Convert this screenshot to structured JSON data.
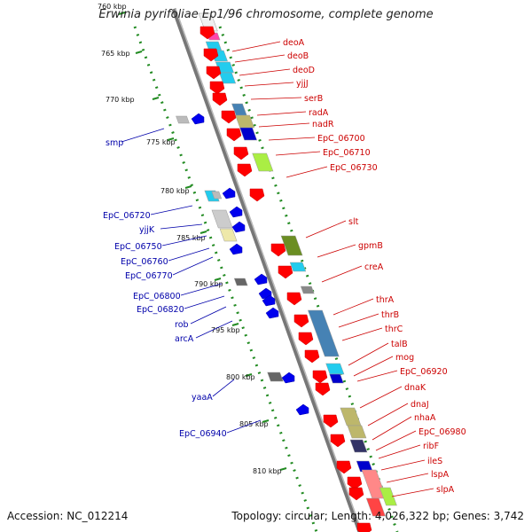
{
  "title": "Erwinia pyrifoliae Ep1/96 chromosome, complete genome",
  "footer": {
    "accession": "Accession: NC_012214",
    "stats": "Topology: circular; Length: 4,026,322 bp; Genes: 3,742"
  },
  "colors": {
    "forward_label": "#cc0000",
    "reverse_label": "#0000aa",
    "ruler": "#228b22",
    "backbone": "#888888"
  },
  "ticks": [
    "760 kbp",
    "765 kbp",
    "770 kbp",
    "775 kbp",
    "780 kbp",
    "785 kbp",
    "790 kbp",
    "795 kbp",
    "800 kbp",
    "805 kbp",
    "810 kbp"
  ],
  "forward_genes": [
    "deoA",
    "deoB",
    "deoD",
    "yjjJ",
    "serB",
    "radA",
    "nadR",
    "EpC_06700",
    "EpC_06710",
    "EpC_06730",
    "slt",
    "gpmB",
    "creA",
    "thrA",
    "thrB",
    "thrC",
    "talB",
    "mog",
    "EpC_06920",
    "dnaK",
    "dnaJ",
    "nhaA",
    "EpC_06980",
    "ribF",
    "ileS",
    "lspA",
    "slpA"
  ],
  "reverse_genes": [
    "smp",
    "EpC_06720",
    "yjjK",
    "EpC_06750",
    "EpC_06760",
    "EpC_06770",
    "EpC_06800",
    "EpC_06820",
    "rob",
    "arcA",
    "yaaA",
    "EpC_06940"
  ]
}
